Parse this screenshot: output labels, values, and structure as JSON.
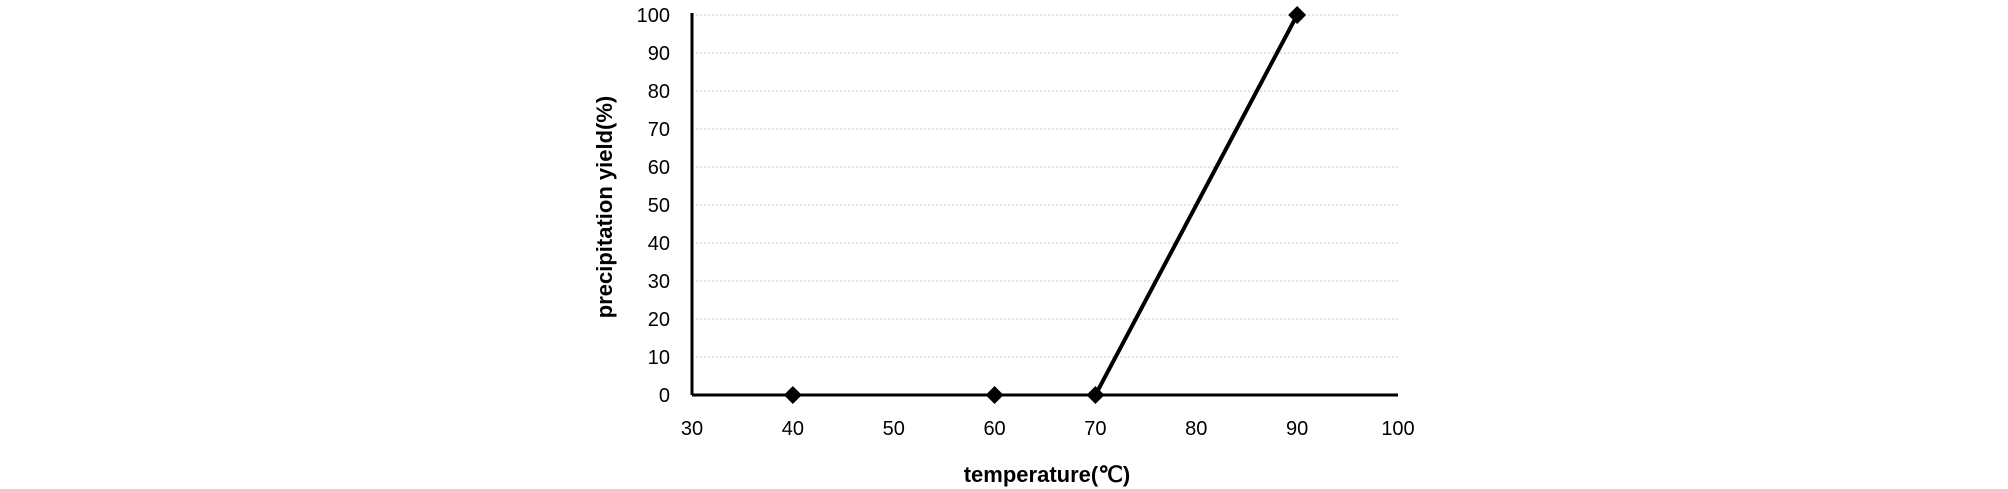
{
  "chart_data": {
    "type": "scatter",
    "title": "",
    "xlabel": "temperature(℃)",
    "ylabel": "precipitation yield(%)",
    "xlim": [
      30,
      100
    ],
    "ylim": [
      0,
      100
    ],
    "xticks": [
      30,
      40,
      50,
      60,
      70,
      80,
      90,
      100
    ],
    "yticks": [
      0,
      10,
      20,
      30,
      40,
      50,
      60,
      70,
      80,
      90,
      100
    ],
    "grid": true,
    "series": [
      {
        "name": "precipitation yield",
        "x": [
          40,
          60,
          70,
          90
        ],
        "y": [
          0,
          0,
          0,
          100
        ],
        "marker": "diamond",
        "color": "#000000",
        "line_segments": [
          [
            70,
            0,
            90,
            100
          ]
        ]
      }
    ]
  }
}
